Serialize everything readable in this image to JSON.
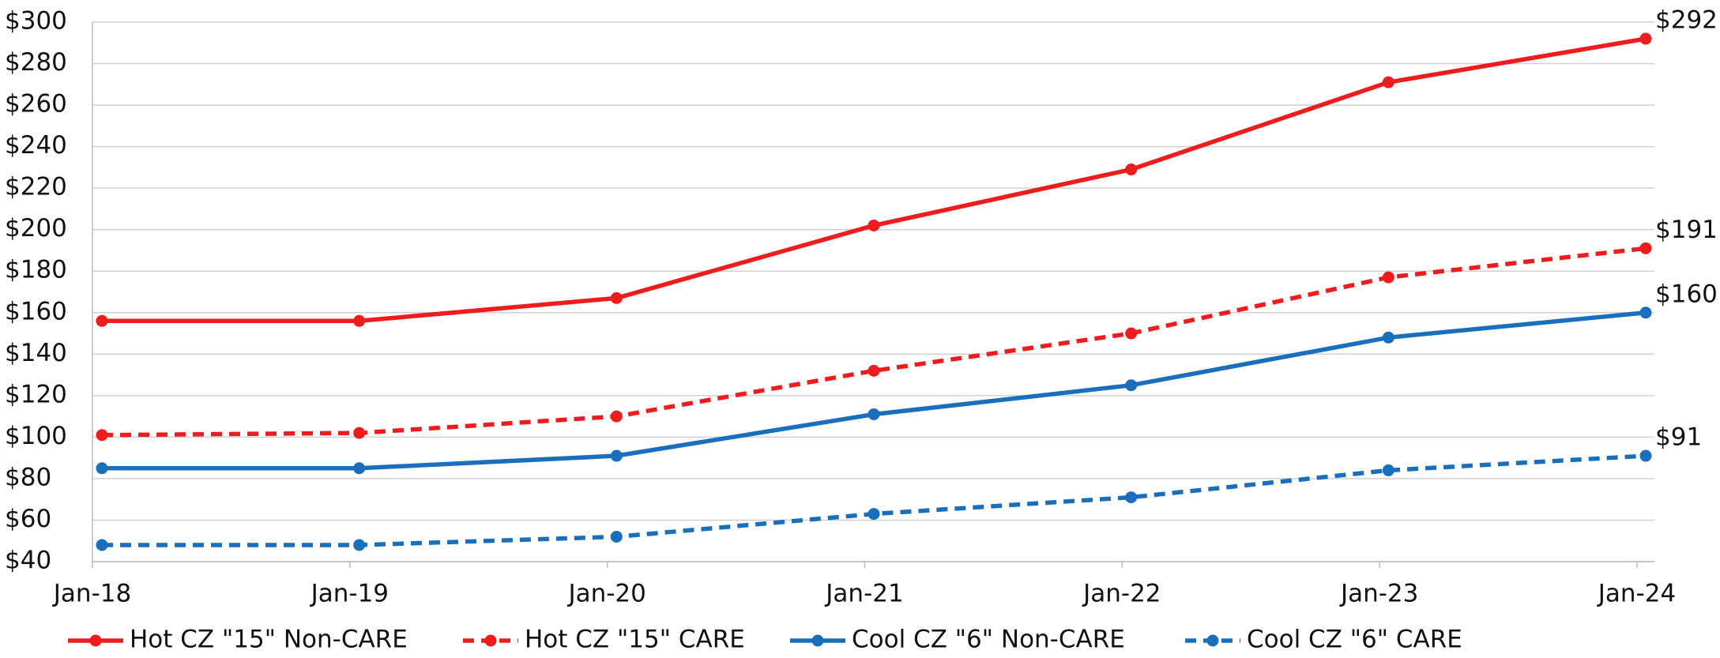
{
  "chart_data": {
    "type": "line",
    "categories": [
      "Jan-18",
      "Jan-19",
      "Jan-20",
      "Jan-21",
      "Jan-22",
      "Jan-23",
      "Jan-24"
    ],
    "series": [
      {
        "name": "Hot CZ \"15\" Non-CARE",
        "color": "#ee1c1c",
        "dashed": false,
        "values": [
          156,
          156,
          167,
          202,
          229,
          271,
          292
        ],
        "value_labels": [
          null,
          null,
          null,
          null,
          null,
          null,
          "$292"
        ]
      },
      {
        "name": "Hot CZ \"15\" CARE",
        "color": "#ee1c1c",
        "dashed": true,
        "values": [
          101,
          102,
          110,
          132,
          150,
          177,
          191
        ],
        "value_labels": [
          null,
          null,
          null,
          null,
          null,
          null,
          "$191"
        ]
      },
      {
        "name": "Cool CZ \"6\" Non-CARE",
        "color": "#1a6fbd",
        "dashed": false,
        "values": [
          85,
          85,
          91,
          111,
          125,
          148,
          160
        ],
        "value_labels": [
          null,
          null,
          null,
          null,
          null,
          null,
          "$160"
        ]
      },
      {
        "name": "Cool CZ \"6\" CARE",
        "color": "#1a6fbd",
        "dashed": true,
        "values": [
          48,
          48,
          52,
          63,
          71,
          84,
          91
        ],
        "value_labels": [
          null,
          null,
          null,
          null,
          null,
          null,
          "$91"
        ]
      }
    ],
    "ylim": [
      40,
      300
    ],
    "yticks": [
      {
        "value": 40,
        "label": "$40"
      },
      {
        "value": 60,
        "label": "$60"
      },
      {
        "value": 80,
        "label": "$80"
      },
      {
        "value": 100,
        "label": "$100"
      },
      {
        "value": 120,
        "label": "$120"
      },
      {
        "value": 140,
        "label": "$140"
      },
      {
        "value": 160,
        "label": "$160"
      },
      {
        "value": 180,
        "label": "$180"
      },
      {
        "value": 200,
        "label": "$200"
      },
      {
        "value": 220,
        "label": "$220"
      },
      {
        "value": 240,
        "label": "$240"
      },
      {
        "value": 260,
        "label": "$260"
      },
      {
        "value": 280,
        "label": "$280"
      },
      {
        "value": 300,
        "label": "$300"
      }
    ],
    "grid": true,
    "legend": "bottom"
  }
}
